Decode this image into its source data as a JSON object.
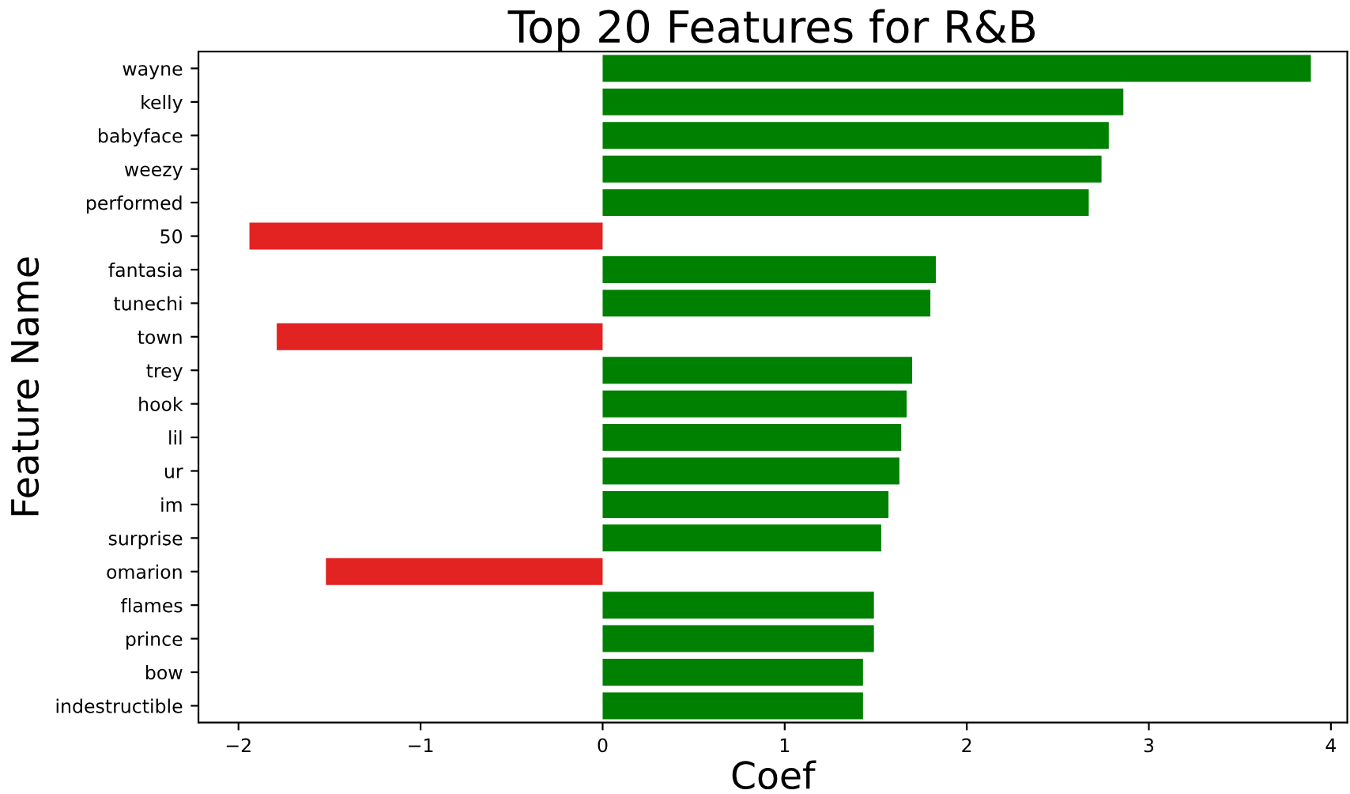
{
  "chart_data": {
    "type": "bar",
    "orientation": "horizontal",
    "title": "Top 20 Features for R&B",
    "xlabel": "Coef",
    "ylabel": "Feature Name",
    "categories": [
      "wayne",
      "kelly",
      "babyface",
      "weezy",
      "performed",
      "50",
      "fantasia",
      "tunechi",
      "town",
      "trey",
      "hook",
      "lil",
      "ur",
      "im",
      "surprise",
      "omarion",
      "flames",
      "prince",
      "bow",
      "indestructible"
    ],
    "values": [
      3.89,
      2.86,
      2.78,
      2.74,
      2.67,
      -1.94,
      1.83,
      1.8,
      -1.79,
      1.7,
      1.67,
      1.64,
      1.63,
      1.57,
      1.53,
      -1.52,
      1.49,
      1.49,
      1.43,
      1.43
    ],
    "colors": [
      "#008000",
      "#008000",
      "#008000",
      "#008000",
      "#008000",
      "#e32222",
      "#008000",
      "#008000",
      "#e32222",
      "#008000",
      "#008000",
      "#008000",
      "#008000",
      "#008000",
      "#008000",
      "#e32222",
      "#008000",
      "#008000",
      "#008000",
      "#008000"
    ],
    "xlim": [
      -2.22,
      4.09
    ],
    "xticks": [
      {
        "value": -2,
        "label": "−2"
      },
      {
        "value": -1,
        "label": "−1"
      },
      0,
      1,
      2,
      3,
      4
    ],
    "grid": false,
    "legend": false
  }
}
